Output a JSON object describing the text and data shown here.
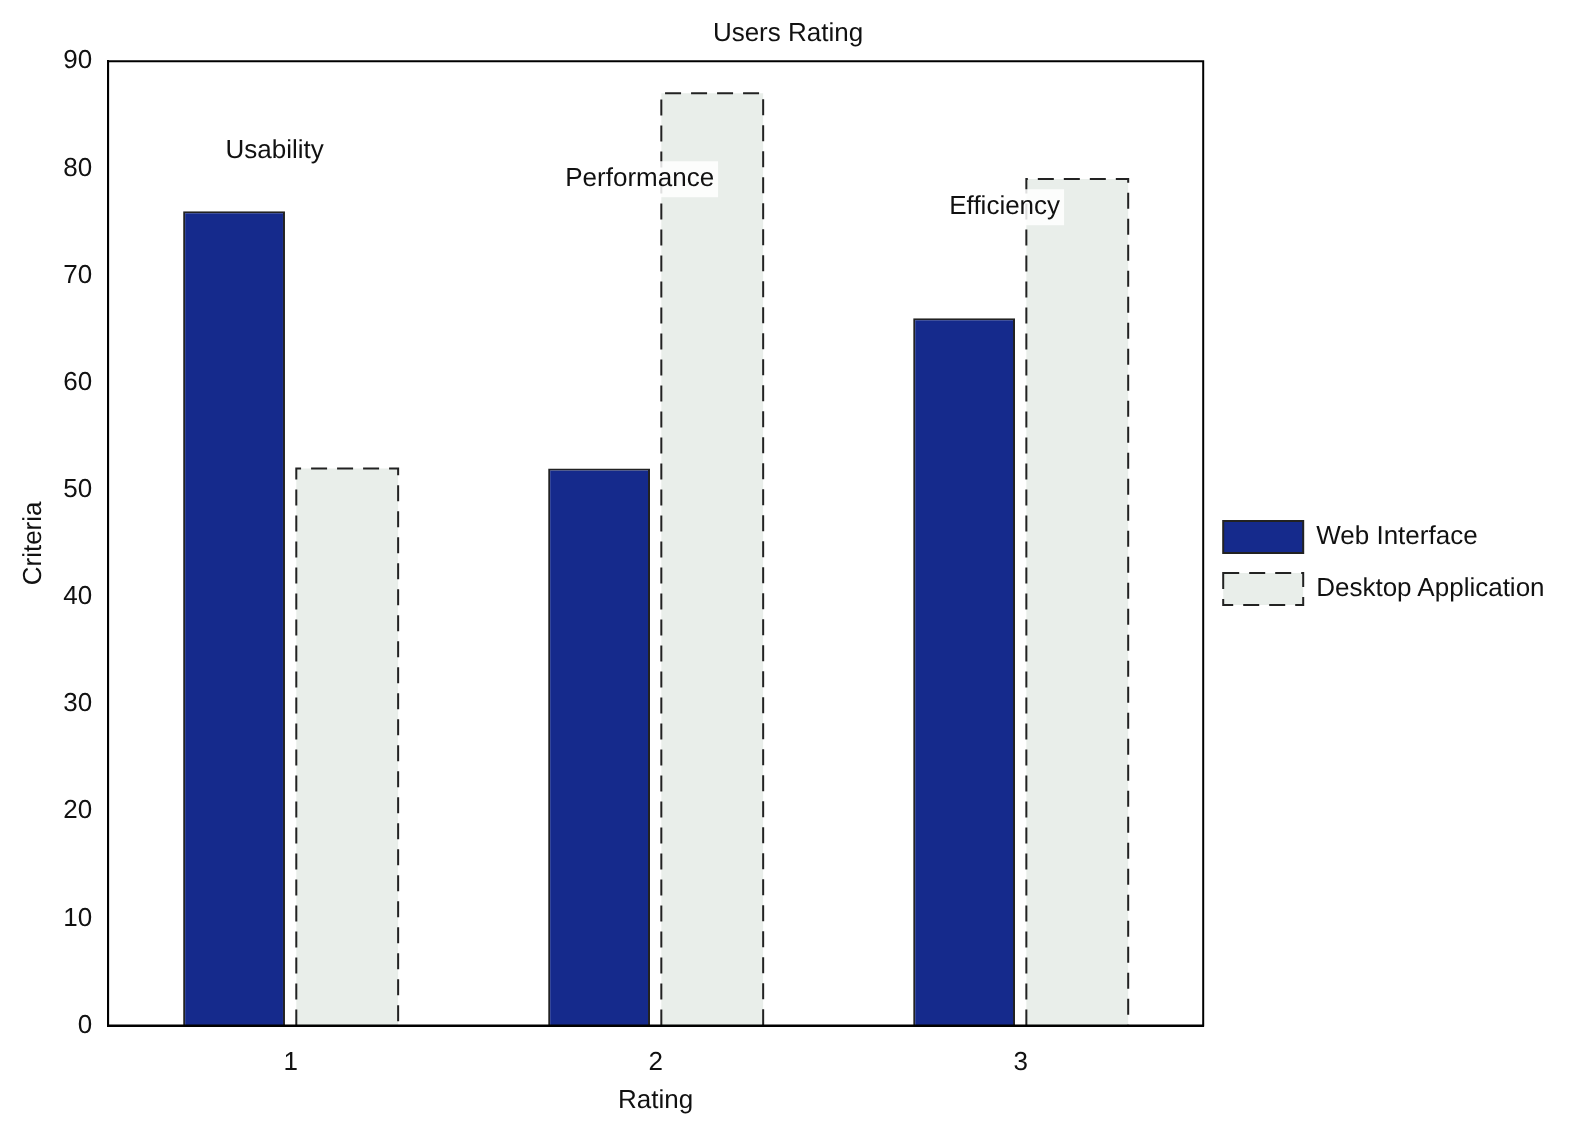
{
  "chart_data": {
    "type": "bar",
    "title": "Users Rating",
    "xlabel": "Rating",
    "ylabel": "Criteria",
    "categories": [
      "1",
      "2",
      "3"
    ],
    "series": [
      {
        "name": "Web Interface",
        "color": "#152a8c",
        "values": [
          76,
          52,
          66
        ]
      },
      {
        "name": "Desktop Application",
        "color": "#e9eeea",
        "values": [
          52,
          87,
          79
        ],
        "line_style": "dashed"
      }
    ],
    "ylim": [
      0,
      90
    ],
    "yticks": [
      0,
      10,
      20,
      30,
      40,
      50,
      60,
      70,
      80,
      90
    ],
    "grid": false,
    "legend": "right",
    "annotations": [
      "Usability",
      "Performance",
      "Efficiency"
    ]
  }
}
